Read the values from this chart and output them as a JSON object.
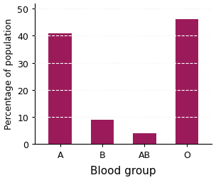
{
  "categories": [
    "A",
    "B",
    "AB",
    "O"
  ],
  "values": [
    41,
    9,
    4,
    46
  ],
  "bar_color": "#9B1B5A",
  "xlabel": "Blood group",
  "ylabel": "Percentage of population",
  "ylim": [
    0,
    52
  ],
  "yticks": [
    0,
    10,
    20,
    30,
    40,
    50
  ],
  "grid_color": "#ccccdd",
  "background_color": "#ffffff",
  "xlabel_fontsize": 11,
  "ylabel_fontsize": 9,
  "tick_fontsize": 9,
  "bar_width": 0.55
}
